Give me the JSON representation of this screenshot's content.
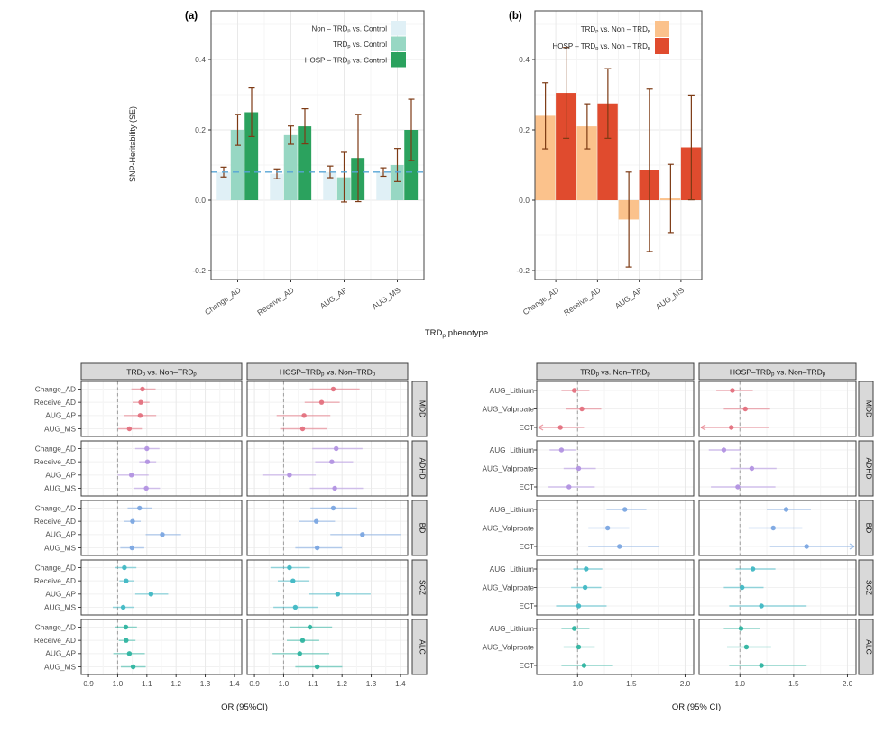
{
  "chart_data": [
    {
      "id": "panel_a",
      "type": "bar",
      "tag": "(a)",
      "ylabel": "SNP-Heritability (SE)",
      "shared_xlabel": "TRD~p~ phenotype",
      "categories": [
        "Change_AD",
        "Receive_AD",
        "AUG_AP",
        "AUG_MS"
      ],
      "yticks": [
        -0.2,
        0.0,
        0.2,
        0.4
      ],
      "ylim": [
        -0.23,
        0.54
      ],
      "grid": "on",
      "legend_position": "top-right-inside",
      "errorbar_color": "#7d3a14",
      "reference_line": 0.08,
      "reference_line_color": "#57a5d6",
      "series": [
        {
          "name": "Non – TRD~p~ vs. Control",
          "color": "#e0f0f6",
          "values": [
            0.08,
            0.075,
            0.08,
            0.08
          ],
          "ci_low": [
            0.066,
            0.061,
            0.064,
            0.068
          ],
          "ci_high": [
            0.094,
            0.089,
            0.097,
            0.092
          ]
        },
        {
          "name": "TRD~p~ vs. Control",
          "color": "#97d7c3",
          "values": [
            0.2,
            0.185,
            0.065,
            0.1
          ],
          "ci_low": [
            0.156,
            0.159,
            -0.005,
            0.053
          ],
          "ci_high": [
            0.244,
            0.211,
            0.136,
            0.147
          ]
        },
        {
          "name": "HOSP – TRD~p~ vs. Control",
          "color": "#2ba25e",
          "values": [
            0.25,
            0.21,
            0.12,
            0.2
          ],
          "ci_low": [
            0.181,
            0.16,
            -0.004,
            0.113
          ],
          "ci_high": [
            0.319,
            0.26,
            0.244,
            0.287
          ]
        }
      ]
    },
    {
      "id": "panel_b",
      "type": "bar",
      "tag": "(b)",
      "categories": [
        "Change_AD",
        "Receive_AD",
        "AUG_AP",
        "AUG_MS"
      ],
      "yticks": [
        -0.2,
        0.0,
        0.2,
        0.4
      ],
      "ylim": [
        -0.23,
        0.54
      ],
      "grid": "on",
      "legend_position": "top-right-inside",
      "errorbar_color": "#7d3a14",
      "series": [
        {
          "name": "TRD~p~ vs. Non – TRD~p~",
          "color": "#fbc28c",
          "values": [
            0.24,
            0.21,
            -0.055,
            0.005
          ],
          "ci_low": [
            0.146,
            0.146,
            -0.19,
            -0.092
          ],
          "ci_high": [
            0.334,
            0.274,
            0.08,
            0.102
          ]
        },
        {
          "name": "HOSP – TRD~p~ vs. Non – TRD~p~",
          "color": "#e04b2e",
          "values": [
            0.305,
            0.275,
            0.085,
            0.15
          ],
          "ci_low": [
            0.176,
            0.176,
            -0.146,
            0.001
          ],
          "ci_high": [
            0.434,
            0.374,
            0.316,
            0.299
          ]
        }
      ]
    },
    {
      "id": "forest_left",
      "type": "scatter",
      "subtype": "forest",
      "xlabel": "OR (95%CI)",
      "columns": [
        "TRD~p~ vs. Non–TRD~p~",
        "HOSP–TRD~p~ vs. Non–TRD~p~"
      ],
      "rows": [
        "Change_AD",
        "Receive_AD",
        "AUG_AP",
        "AUG_MS"
      ],
      "xticks": [
        0.9,
        1.0,
        1.1,
        1.2,
        1.3,
        1.4
      ],
      "xlim": [
        0.875,
        1.425
      ],
      "reference_line": 1.0,
      "grid": "on",
      "facets": [
        {
          "label": "MDD",
          "color": "#e4707e",
          "panels": [
            [
              [
                1.085,
                1.047,
                1.13
              ],
              [
                1.079,
                1.051,
                1.109
              ],
              [
                1.077,
                1.023,
                1.132
              ],
              [
                1.04,
                1.002,
                1.083
              ]
            ],
            [
              [
                1.17,
                1.09,
                1.26
              ],
              [
                1.13,
                1.072,
                1.192
              ],
              [
                1.07,
                0.976,
                1.16
              ],
              [
                1.065,
                0.988,
                1.15
              ]
            ]
          ]
        },
        {
          "label": "ADHD",
          "color": "#b292e2",
          "panels": [
            [
              [
                1.1,
                1.06,
                1.143
              ],
              [
                1.102,
                1.074,
                1.132
              ],
              [
                1.047,
                1.0,
                1.106
              ],
              [
                1.098,
                1.057,
                1.145
              ]
            ],
            [
              [
                1.18,
                1.098,
                1.27
              ],
              [
                1.165,
                1.108,
                1.238
              ],
              [
                1.02,
                0.93,
                1.11
              ],
              [
                1.175,
                1.09,
                1.272
              ]
            ]
          ]
        },
        {
          "label": "BD",
          "color": "#7ba7e1",
          "panels": [
            [
              [
                1.075,
                1.034,
                1.117
              ],
              [
                1.051,
                1.021,
                1.079
              ],
              [
                1.153,
                1.096,
                1.217
              ],
              [
                1.049,
                1.009,
                1.091
              ]
            ],
            [
              [
                1.17,
                1.092,
                1.252
              ],
              [
                1.112,
                1.052,
                1.176
              ],
              [
                1.27,
                1.16,
                1.4
              ],
              [
                1.115,
                1.04,
                1.2
              ]
            ]
          ]
        },
        {
          "label": "SCZ",
          "color": "#40b8c4",
          "panels": [
            [
              [
                1.023,
                0.99,
                1.064
              ],
              [
                1.029,
                1.006,
                1.057
              ],
              [
                1.114,
                1.06,
                1.173
              ],
              [
                1.019,
                0.983,
                1.057
              ]
            ],
            [
              [
                1.02,
                0.955,
                1.09
              ],
              [
                1.032,
                0.98,
                1.088
              ],
              [
                1.185,
                1.087,
                1.298
              ],
              [
                1.04,
                0.965,
                1.117
              ]
            ]
          ]
        },
        {
          "label": "ALC",
          "color": "#2eb4a0",
          "panels": [
            [
              [
                1.028,
                0.991,
                1.066
              ],
              [
                1.029,
                1.004,
                1.061
              ],
              [
                1.04,
                0.985,
                1.093
              ],
              [
                1.053,
                1.011,
                1.096
              ]
            ],
            [
              [
                1.09,
                1.02,
                1.166
              ],
              [
                1.065,
                1.011,
                1.122
              ],
              [
                1.055,
                0.962,
                1.156
              ],
              [
                1.115,
                1.04,
                1.201
              ]
            ]
          ]
        }
      ]
    },
    {
      "id": "forest_right",
      "type": "scatter",
      "subtype": "forest",
      "xlabel": "OR (95% CI)",
      "columns": [
        "TRD~p~ vs. Non–TRD~p~",
        "HOSP–TRD~p~ vs. Non–TRD~p~"
      ],
      "rows": [
        "AUG_Lithium",
        "AUG_Valproate",
        "ECT"
      ],
      "xticks": [
        1.0,
        1.5,
        2.0
      ],
      "xlim": [
        0.62,
        2.08
      ],
      "reference_line": 1.0,
      "grid": "on",
      "facets": [
        {
          "label": "MDD",
          "color": "#e4707e",
          "panels": [
            [
              [
                0.97,
                0.85,
                1.11
              ],
              [
                1.04,
                0.89,
                1.22
              ],
              [
                0.84,
                0.62,
                1.06,
                "left"
              ]
            ],
            [
              [
                0.93,
                0.78,
                1.12
              ],
              [
                1.05,
                0.85,
                1.28
              ],
              [
                0.92,
                0.62,
                1.27,
                "left"
              ]
            ]
          ]
        },
        {
          "label": "ADHD",
          "color": "#b292e2",
          "panels": [
            [
              [
                0.85,
                0.74,
                0.98
              ],
              [
                1.01,
                0.87,
                1.17
              ],
              [
                0.92,
                0.73,
                1.16
              ]
            ],
            [
              [
                0.85,
                0.71,
                1.01
              ],
              [
                1.11,
                0.91,
                1.34
              ],
              [
                0.98,
                0.73,
                1.33
              ]
            ]
          ]
        },
        {
          "label": "BD",
          "color": "#7ba7e1",
          "panels": [
            [
              [
                1.44,
                1.27,
                1.64
              ],
              [
                1.28,
                1.1,
                1.48
              ],
              [
                1.39,
                1.1,
                1.76
              ]
            ],
            [
              [
                1.43,
                1.25,
                1.66
              ],
              [
                1.31,
                1.08,
                1.58
              ],
              [
                1.62,
                1.28,
                2.08,
                "right"
              ]
            ]
          ]
        },
        {
          "label": "SCZ",
          "color": "#40b8c4",
          "panels": [
            [
              [
                1.08,
                0.96,
                1.23
              ],
              [
                1.07,
                0.94,
                1.22
              ],
              [
                1.01,
                0.8,
                1.27
              ]
            ],
            [
              [
                1.12,
                0.96,
                1.33
              ],
              [
                1.02,
                0.85,
                1.22
              ],
              [
                1.2,
                0.9,
                1.62
              ]
            ]
          ]
        },
        {
          "label": "ALC",
          "color": "#2eb4a0",
          "panels": [
            [
              [
                0.97,
                0.85,
                1.11
              ],
              [
                1.01,
                0.87,
                1.16
              ],
              [
                1.06,
                0.85,
                1.33
              ]
            ],
            [
              [
                1.01,
                0.85,
                1.19
              ],
              [
                1.06,
                0.88,
                1.29
              ],
              [
                1.2,
                0.9,
                1.62
              ]
            ]
          ]
        }
      ]
    }
  ],
  "style": {
    "strip_bg": "#d9d9d9",
    "panel_border": "#3f3f3f",
    "grid_major": "#e9e9e9",
    "grid_minor": "#f4f4f4",
    "tick_text": "#4d4d4d",
    "axis_text": "#1a1a1a"
  }
}
